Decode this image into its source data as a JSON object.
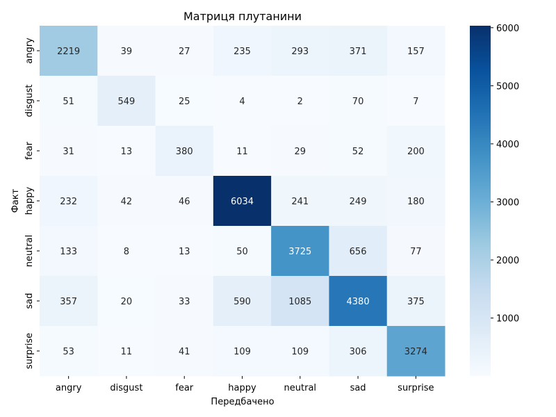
{
  "chart_data": {
    "type": "heatmap",
    "title": "Матриця плутанини",
    "xlabel": "Передбачено",
    "ylabel": "Факт",
    "x_categories": [
      "angry",
      "disgust",
      "fear",
      "happy",
      "neutral",
      "sad",
      "surprise"
    ],
    "y_categories": [
      "angry",
      "disgust",
      "fear",
      "happy",
      "neutral",
      "sad",
      "surprise"
    ],
    "values": [
      [
        2219,
        39,
        27,
        235,
        293,
        371,
        157
      ],
      [
        51,
        549,
        25,
        4,
        2,
        70,
        7
      ],
      [
        31,
        13,
        380,
        11,
        29,
        52,
        200
      ],
      [
        232,
        42,
        46,
        6034,
        241,
        249,
        180
      ],
      [
        133,
        8,
        13,
        50,
        3725,
        656,
        77
      ],
      [
        357,
        20,
        33,
        590,
        1085,
        4380,
        375
      ],
      [
        53,
        11,
        41,
        109,
        109,
        306,
        3274
      ]
    ],
    "colormap": "Blues",
    "colorbar": {
      "ticks": [
        1000,
        2000,
        3000,
        4000,
        5000,
        6000
      ],
      "range": [
        2,
        6034
      ]
    }
  }
}
